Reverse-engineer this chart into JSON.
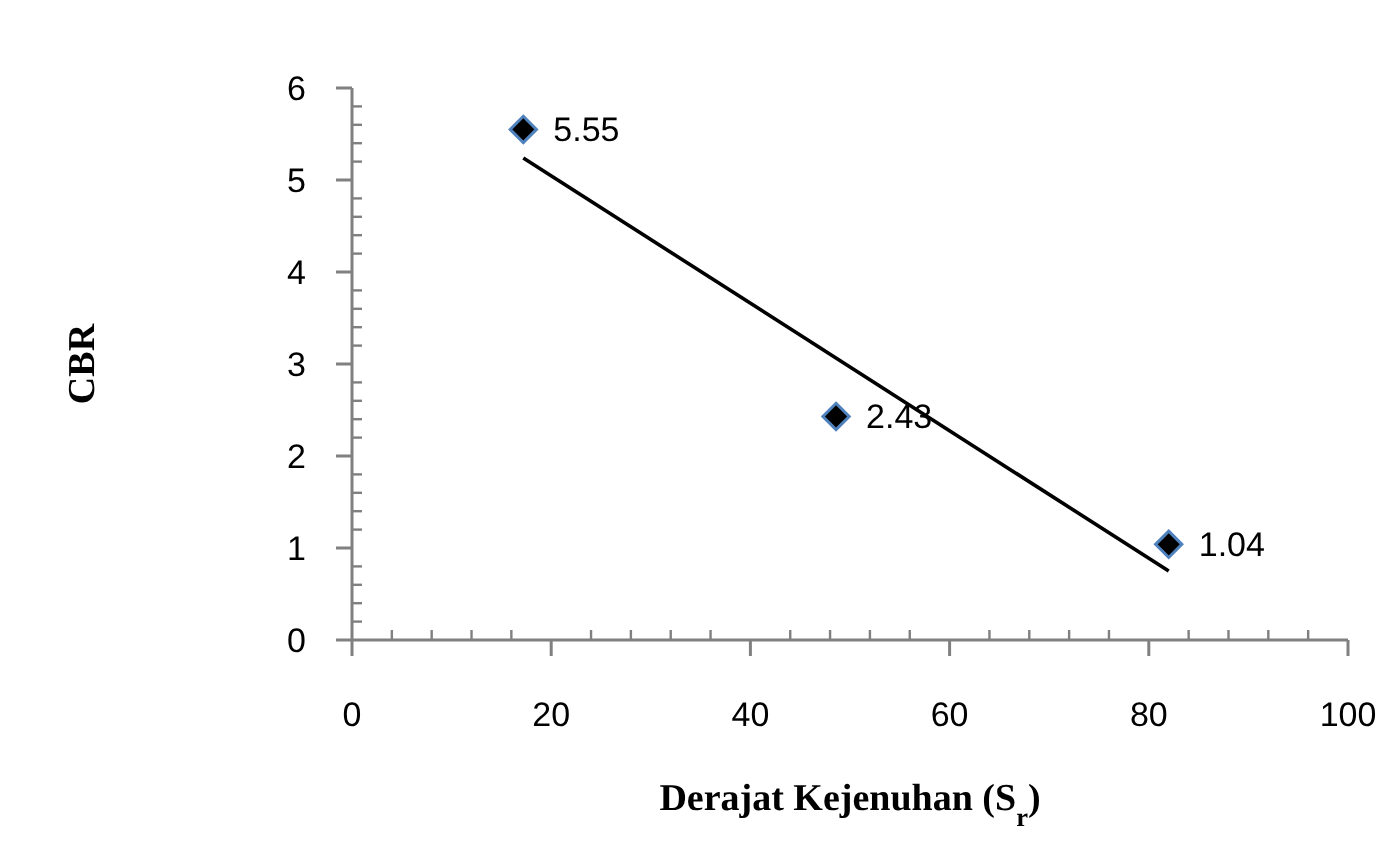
{
  "chart_data": {
    "type": "scatter",
    "xlabel": "Derajat Kejenuhan (S$_{r}$)",
    "ylabel": "CBR",
    "xlim": [
      0,
      100
    ],
    "ylim": [
      0,
      6
    ],
    "xticks": [
      0,
      {
        "value": 4,
        "label": null
      },
      {
        "value": 8,
        "label": null
      },
      {
        "value": 12,
        "label": null
      },
      {
        "value": 16,
        "label": null
      },
      20,
      {
        "value": 24,
        "label": null
      },
      {
        "value": 28,
        "label": null
      },
      {
        "value": 32,
        "label": null
      },
      {
        "value": 36,
        "label": null
      },
      40,
      {
        "value": 44,
        "label": null
      },
      {
        "value": 48,
        "label": null
      },
      {
        "value": 52,
        "label": null
      },
      {
        "value": 56,
        "label": null
      },
      60,
      {
        "value": 64,
        "label": null
      },
      {
        "value": 68,
        "label": null
      },
      {
        "value": 72,
        "label": null
      },
      {
        "value": 76,
        "label": null
      },
      80,
      {
        "value": 84,
        "label": null
      },
      {
        "value": 88,
        "label": null
      },
      {
        "value": 92,
        "label": null
      },
      {
        "value": 96,
        "label": null
      },
      100
    ],
    "yticks": [
      0,
      {
        "value": 0.2,
        "label": null
      },
      {
        "value": 0.4,
        "label": null
      },
      {
        "value": 0.6,
        "label": null
      },
      {
        "value": 0.8,
        "label": null
      },
      1,
      {
        "value": 1.2,
        "label": null
      },
      {
        "value": 1.4,
        "label": null
      },
      {
        "value": 1.6,
        "label": null
      },
      {
        "value": 1.8,
        "label": null
      },
      2,
      {
        "value": 2.2,
        "label": null
      },
      {
        "value": 2.4,
        "label": null
      },
      {
        "value": 2.6,
        "label": null
      },
      {
        "value": 2.8,
        "label": null
      },
      3,
      {
        "value": 3.2,
        "label": null
      },
      {
        "value": 3.4,
        "label": null
      },
      {
        "value": 3.6,
        "label": null
      },
      {
        "value": 3.8,
        "label": null
      },
      4,
      {
        "value": 4.2,
        "label": null
      },
      {
        "value": 4.4,
        "label": null
      },
      {
        "value": 4.6,
        "label": null
      },
      {
        "value": 4.8,
        "label": null
      },
      5,
      {
        "value": 5.2,
        "label": null
      },
      {
        "value": 5.4,
        "label": null
      },
      {
        "value": 5.6,
        "label": null
      },
      {
        "value": 5.8,
        "label": null
      },
      6
    ],
    "marker": "diamond",
    "series": [
      {
        "color": "#000000",
        "x": [
          17.2,
          48.6,
          82.0
        ],
        "values": [
          5.55,
          2.43,
          1.04
        ],
        "value_labels": [
          "5.55",
          "2.43",
          "1.04"
        ]
      },
      {
        "type": "line",
        "color": "#000000",
        "marker": "none",
        "line_style": "solid",
        "x": [
          17.2,
          82.0
        ],
        "values": [
          5.24,
          0.75
        ]
      }
    ]
  }
}
